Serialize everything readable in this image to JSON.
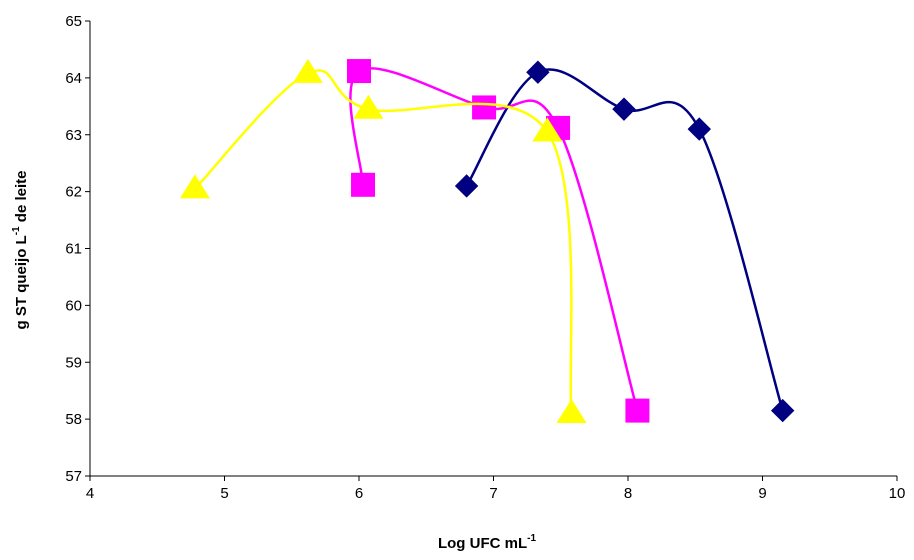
{
  "chart_data": {
    "type": "scatter",
    "title": "",
    "xlabel": {
      "main": "Log UFC mL",
      "superscript": "-1"
    },
    "ylabel": {
      "part1": "g ST queijo L",
      "superscript": "-1",
      "part2": " de leite"
    },
    "xlim": [
      4,
      10
    ],
    "ylim": [
      57,
      65
    ],
    "x_ticks": [
      4,
      5,
      6,
      7,
      8,
      9,
      10
    ],
    "y_ticks": [
      57,
      58,
      59,
      60,
      61,
      62,
      63,
      64,
      65
    ],
    "grid": false,
    "legend": "none",
    "smooth_lines": true,
    "series": [
      {
        "color": "#000080",
        "marker": "diamond",
        "points": [
          [
            6.8,
            62.1
          ],
          [
            7.33,
            64.1
          ],
          [
            7.97,
            63.45
          ],
          [
            8.53,
            63.1
          ],
          [
            9.15,
            58.15
          ]
        ]
      },
      {
        "color": "#FF00FF",
        "marker": "square",
        "points": [
          [
            6.03,
            62.12
          ],
          [
            6.0,
            64.12
          ],
          [
            6.93,
            63.48
          ],
          [
            7.48,
            63.12
          ],
          [
            8.07,
            58.15
          ]
        ]
      },
      {
        "color": "#FFFF00",
        "marker": "triangle",
        "points": [
          [
            4.78,
            62.05
          ],
          [
            5.62,
            64.08
          ],
          [
            6.07,
            63.45
          ],
          [
            7.4,
            63.05
          ],
          [
            7.58,
            58.1
          ]
        ]
      }
    ]
  }
}
